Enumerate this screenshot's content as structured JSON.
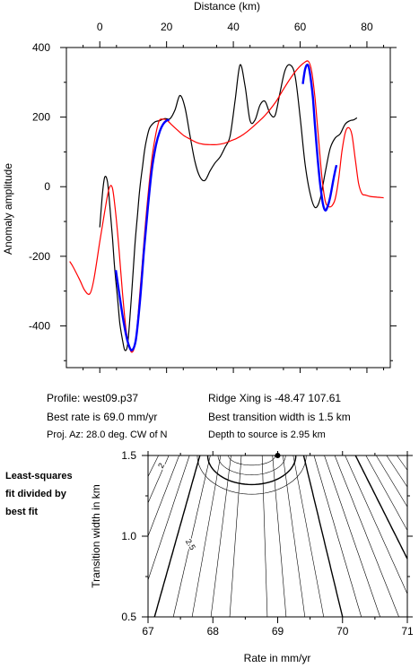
{
  "info": {
    "profile": "Profile: west09.p37",
    "best_rate": "Best rate is 69.0 mm/yr",
    "proj_az": "Proj. Az: 28.0 deg. CW of N",
    "ridge_xing": "Ridge Xing is -48.47 107.61",
    "best_width": "Best transition width is 1.5 km",
    "depth": "Depth to source is   2.95 km"
  },
  "side_note": [
    "Least-squares",
    "fit divided by",
    "best fit"
  ],
  "colors": {
    "observed": "#000000",
    "model": "#ff0000",
    "fit_segment": "#0000ff",
    "best_marker": "#000000"
  },
  "chart_data": [
    {
      "type": "line",
      "xlabel": "Distance (km)",
      "ylabel": "Anomaly amplitude",
      "xlim": [
        -10,
        87
      ],
      "ylim": [
        -520,
        400
      ],
      "xticks": [
        0,
        20,
        40,
        60,
        80
      ],
      "yticks": [
        400,
        200,
        0,
        -200,
        -400
      ],
      "grid": false,
      "series": [
        {
          "x": [
            0,
            0.8,
            1.5,
            2.3,
            3.0,
            3.8,
            4.5,
            5.3,
            6.0,
            6.8,
            7.5,
            8.3,
            9.0,
            9.8,
            10.5,
            11.3,
            12.0,
            12.8,
            13.5,
            14.3,
            15.0,
            16.5,
            18.0,
            19.5,
            21.0,
            22.5,
            24.0,
            25.5,
            27.0,
            28.5,
            30.0,
            31.5,
            33.0,
            34.5,
            36.0,
            37.5,
            39.0,
            40.5,
            42.0,
            43.5,
            45.0,
            46.5,
            48.0,
            49.5,
            51.0,
            52.5,
            54.0,
            55.5,
            57.0,
            58.5,
            60.0,
            61.5,
            63.0,
            64.5,
            66.0,
            67.5,
            69.0,
            70.5,
            72.0,
            73.5,
            75.0,
            76.0,
            77.0
          ],
          "y": [
            -117,
            -20,
            28,
            14,
            -55,
            -148,
            -240,
            -318,
            -392,
            -440,
            -470,
            -456,
            -380,
            -270,
            -170,
            -80,
            -4,
            58,
            110,
            148,
            170,
            186,
            190,
            196,
            195,
            220,
            262,
            228,
            148,
            72,
            28,
            18,
            45,
            68,
            85,
            113,
            145,
            245,
            350,
            290,
            190,
            192,
            235,
            245,
            210,
            205,
            272,
            335,
            350,
            318,
            200,
            64,
            -20,
            -60,
            -35,
            40,
            110,
            140,
            152,
            180,
            190,
            192,
            198
          ]
        },
        {
          "x": [
            -9,
            -8,
            -6,
            -4.5,
            -3,
            -1.8,
            0,
            1.5,
            2.8,
            3.8,
            4.8,
            5.8,
            6.8,
            7.8,
            8.8,
            9.8,
            10.8,
            11.8,
            12.8,
            13.8,
            14.8,
            15.8,
            16.8,
            17.8,
            18.8,
            20,
            21.5,
            23,
            25,
            27,
            29,
            31,
            33,
            35,
            37,
            39,
            41,
            43,
            45,
            47,
            49,
            51,
            53,
            55,
            57,
            59,
            61,
            62.5,
            63.5,
            64.5,
            65.5,
            66.5,
            67.5,
            68.5,
            69.5,
            70.5,
            71.5,
            72.5,
            73.5,
            74.5,
            75.5,
            76.5,
            77.5,
            78.5,
            79.5,
            81,
            83,
            85
          ],
          "y": [
            -215,
            -230,
            -268,
            -298,
            -308,
            -268,
            -158,
            -70,
            -5,
            -5,
            -80,
            -185,
            -305,
            -405,
            -460,
            -475,
            -440,
            -330,
            -210,
            -92,
            10,
            95,
            152,
            190,
            194,
            192,
            178,
            165,
            148,
            137,
            127,
            122,
            121,
            121,
            124,
            131,
            139,
            150,
            165,
            182,
            200,
            222,
            248,
            280,
            310,
            336,
            355,
            360,
            330,
            250,
            140,
            30,
            -40,
            -57,
            -55,
            -35,
            20,
            100,
            155,
            170,
            150,
            80,
            10,
            -20,
            -24,
            -28,
            -30,
            -32
          ]
        },
        {
          "x": [
            4.8,
            6.0,
            7.2,
            8.4,
            9.6,
            10.8,
            12.0,
            13.2,
            14.4,
            15.6,
            16.8,
            18.0,
            19.0,
            20.0,
            20.8
          ],
          "y": [
            -240,
            -318,
            -392,
            -447,
            -470,
            -440,
            -332,
            -188,
            -60,
            50,
            118,
            160,
            180,
            190,
            192
          ]
        },
        {
          "x": [
            60.8,
            61.5,
            62.3,
            63.0,
            63.8,
            64.5,
            65.3,
            66.0,
            66.8,
            67.5,
            68.2,
            69.0,
            69.8,
            70.5,
            70.9
          ],
          "y": [
            295,
            338,
            350,
            322,
            258,
            168,
            76,
            8,
            -48,
            -68,
            -58,
            -30,
            12,
            46,
            62
          ]
        }
      ]
    },
    {
      "type": "contour",
      "xlabel": "Rate in mm/yr",
      "ylabel": "Transition width in km",
      "xlim": [
        67,
        71
      ],
      "ylim": [
        0.5,
        1.5
      ],
      "xticks": [
        67,
        68,
        69,
        70,
        71
      ],
      "yticks": [
        0.5,
        1.0,
        1.5
      ],
      "contour_labels": [
        "2",
        "2.5"
      ],
      "best_fit": {
        "x": 69.0,
        "y": 1.5
      }
    }
  ]
}
